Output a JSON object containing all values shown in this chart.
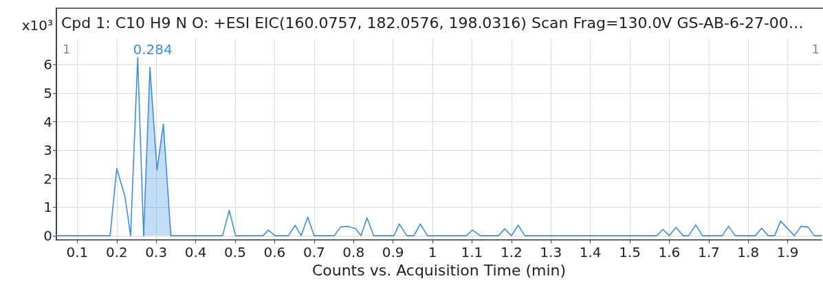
{
  "chart_data": {
    "type": "line",
    "title": "Cpd 1: C10 H9 N O: +ESI EIC(160.0757, 182.0576, 198.0316) Scan Frag=130.0V GS-AB-6-27-00…",
    "xlabel": "Counts vs. Acquisition Time (min)",
    "ylabel": "x10³",
    "series": [
      {
        "color": "#3b8ee6",
        "x": [
          0.047,
          0.183,
          0.2,
          0.221,
          0.235,
          0.253,
          0.268
        ],
        "values": [
          0,
          0,
          2.36,
          1.36,
          0,
          6.25,
          0
        ]
      },
      {
        "type": "area",
        "color": "#3b8ee6",
        "x": [
          0.268,
          0.284,
          0.302,
          0.318,
          0.337
        ],
        "values": [
          0,
          5.9,
          2.31,
          3.92,
          0
        ]
      },
      {
        "color": "#3b8ee6",
        "x": [
          0.337,
          0.468,
          0.485,
          0.501,
          0.571,
          0.584,
          0.601,
          0.635,
          0.652,
          0.667,
          0.684,
          0.7,
          0.751,
          0.767,
          0.784,
          0.805,
          0.819,
          0.834,
          0.851,
          0.902,
          0.916,
          0.935,
          0.953,
          0.969,
          0.987,
          1.086,
          1.101,
          1.121,
          1.167,
          1.183,
          1.2,
          1.217,
          1.234,
          1.568,
          1.584,
          1.6,
          1.617,
          1.635,
          1.649,
          1.667,
          1.684,
          1.734,
          1.75,
          1.767,
          1.818,
          1.834,
          1.851,
          1.867,
          1.882,
          1.917,
          1.934,
          1.952,
          1.967,
          1.986
        ],
        "values": [
          0,
          0,
          0.89,
          0,
          0,
          0.2,
          0,
          0,
          0.36,
          0,
          0.65,
          0,
          0,
          0.3,
          0.33,
          0.25,
          0,
          0.63,
          0,
          0,
          0.41,
          0,
          0,
          0.41,
          0,
          0,
          0.2,
          0,
          0,
          0.24,
          0,
          0.37,
          0,
          0,
          0.22,
          0,
          0.29,
          0,
          0,
          0.38,
          0,
          0,
          0.33,
          0,
          0,
          0.26,
          0,
          0,
          0.51,
          0,
          0.33,
          0.3,
          0,
          0
        ]
      }
    ],
    "xlim": [
      0.047,
      1.986
    ],
    "ylim": [
      -0.15,
      6.9
    ],
    "xticks": [
      0.1,
      0.2,
      0.3,
      0.4,
      0.5,
      0.6,
      0.7,
      0.8,
      0.9,
      1,
      1.1,
      1.2,
      1.3,
      1.4,
      1.5,
      1.6,
      1.7,
      1.8,
      1.9
    ],
    "yticks": [
      0,
      1,
      2,
      3,
      4,
      5,
      6
    ],
    "grid": true,
    "annotations": [
      "1",
      {
        "text": "0.284",
        "x": 0.284,
        "y": 5.9
      },
      "1"
    ]
  }
}
